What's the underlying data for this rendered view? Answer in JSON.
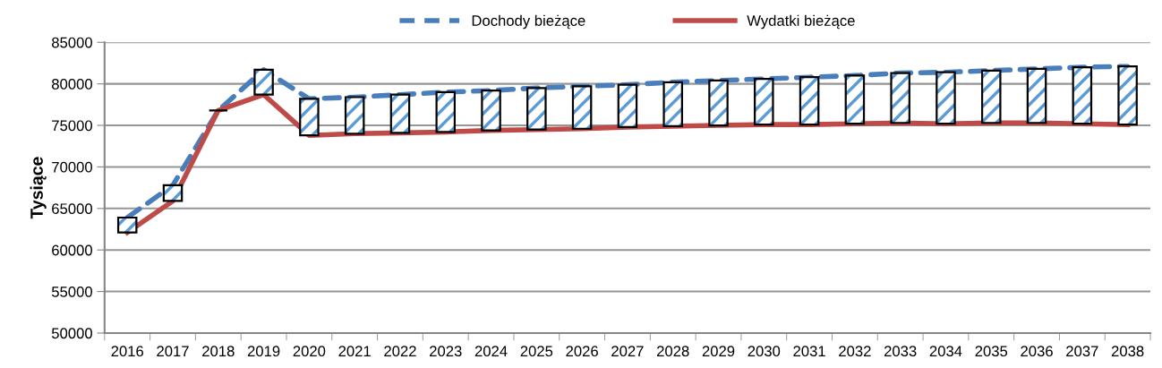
{
  "chart_data": {
    "type": "line",
    "ylabel": "Tysiące",
    "categories": [
      "2016",
      "2017",
      "2018",
      "2019",
      "2020",
      "2021",
      "2022",
      "2023",
      "2024",
      "2025",
      "2026",
      "2027",
      "2028",
      "2029",
      "2030",
      "2031",
      "2032",
      "2033",
      "2034",
      "2035",
      "2036",
      "2037",
      "2038"
    ],
    "series": [
      {
        "name": "Dochody bieżące",
        "line_style": "dashed",
        "color": "#4a7ebb",
        "values": [
          63900,
          67800,
          76800,
          81700,
          78200,
          78400,
          78700,
          79000,
          79200,
          79500,
          79700,
          79900,
          80200,
          80400,
          80600,
          80800,
          81000,
          81300,
          81400,
          81600,
          81800,
          82000,
          82100
        ]
      },
      {
        "name": "Wydatki bieżące",
        "line_style": "solid",
        "color": "#be4b48",
        "values": [
          62100,
          65900,
          76800,
          78700,
          73800,
          74000,
          74100,
          74200,
          74400,
          74500,
          74600,
          74800,
          74900,
          75000,
          75100,
          75100,
          75200,
          75300,
          75200,
          75300,
          75300,
          75200,
          75100
        ]
      },
      {
        "type": "bar",
        "color": "#000000",
        "base": [
          62100,
          65900,
          76800,
          78700,
          73800,
          74000,
          74100,
          74200,
          74400,
          74500,
          74600,
          74800,
          74900,
          75000,
          75100,
          75100,
          75200,
          75300,
          75200,
          75300,
          75300,
          75200,
          75100
        ],
        "values": [
          1800,
          1900,
          0,
          3000,
          4400,
          4400,
          4600,
          4800,
          4800,
          5000,
          5100,
          5100,
          5300,
          5400,
          5500,
          5700,
          5800,
          6000,
          6200,
          6300,
          6500,
          6800,
          7000
        ]
      }
    ],
    "ylim": [
      50000,
      85000
    ],
    "yticks": [
      50000,
      55000,
      60000,
      65000,
      70000,
      75000,
      80000,
      85000
    ],
    "grid": "y",
    "legend": "top",
    "marker": "none"
  }
}
